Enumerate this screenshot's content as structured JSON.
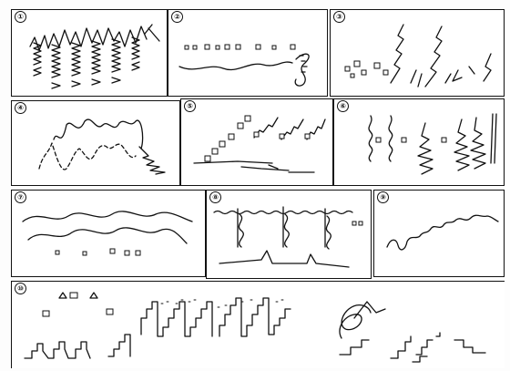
{
  "panels": [
    {
      "id": 1,
      "label": "①"
    },
    {
      "id": 2,
      "label": "②"
    },
    {
      "id": 3,
      "label": "③"
    },
    {
      "id": 4,
      "label": "④"
    },
    {
      "id": 5,
      "label": "⑤"
    },
    {
      "id": 6,
      "label": "⑥"
    },
    {
      "id": 7,
      "label": "⑦"
    },
    {
      "id": 8,
      "label": "⑧"
    },
    {
      "id": 9,
      "label": "⑨"
    },
    {
      "id": 10,
      "label": "⑩"
    }
  ]
}
